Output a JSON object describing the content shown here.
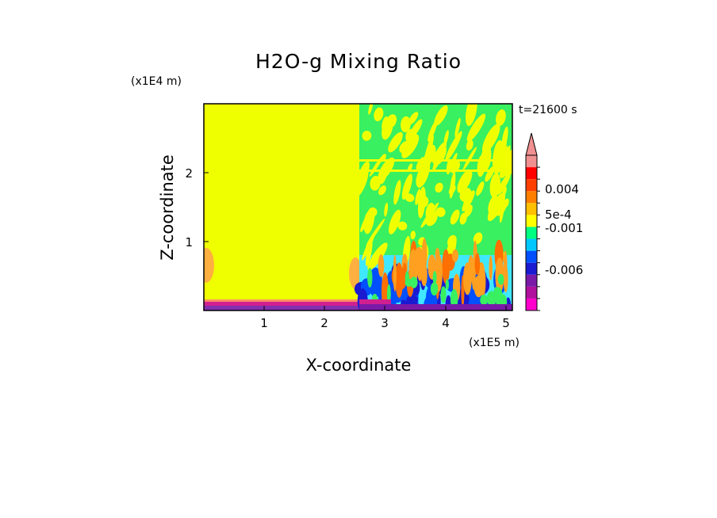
{
  "chart_data": {
    "type": "heatmap",
    "title": "H2O-g Mixing Ratio",
    "xlabel": "X-coordinate",
    "ylabel": "Z-coordinate",
    "x_unit": "(x1E5 m)",
    "y_unit": "(x1E4 m)",
    "time_label": "t=21600 s",
    "x_ticks": [
      "1",
      "2",
      "3",
      "4",
      "5"
    ],
    "y_ticks": [
      "1",
      "2"
    ],
    "xlim": [
      0,
      5.1
    ],
    "ylim": [
      0,
      3.0
    ],
    "grid": false,
    "colorbar": {
      "placement": "right",
      "labels": [
        "0.004",
        "5e-4",
        "-0.001",
        "-0.006"
      ],
      "colors": [
        "#ff00cc",
        "#b0109c",
        "#7a1aa8",
        "#1a1ad0",
        "#0050ff",
        "#00c8ff",
        "#00ff80",
        "#ffff00",
        "#ffc000",
        "#ff8000",
        "#ff4000",
        "#ff0000",
        "#f09090"
      ]
    },
    "regions": [
      {
        "name": "uniform",
        "x": [
          0,
          2.55
        ],
        "z": [
          0,
          3.0
        ],
        "value_class": "yellow"
      },
      {
        "name": "turbulent",
        "x": [
          2.55,
          5.1
        ],
        "z": [
          0,
          3.0
        ],
        "value_class": "mixed"
      }
    ]
  }
}
